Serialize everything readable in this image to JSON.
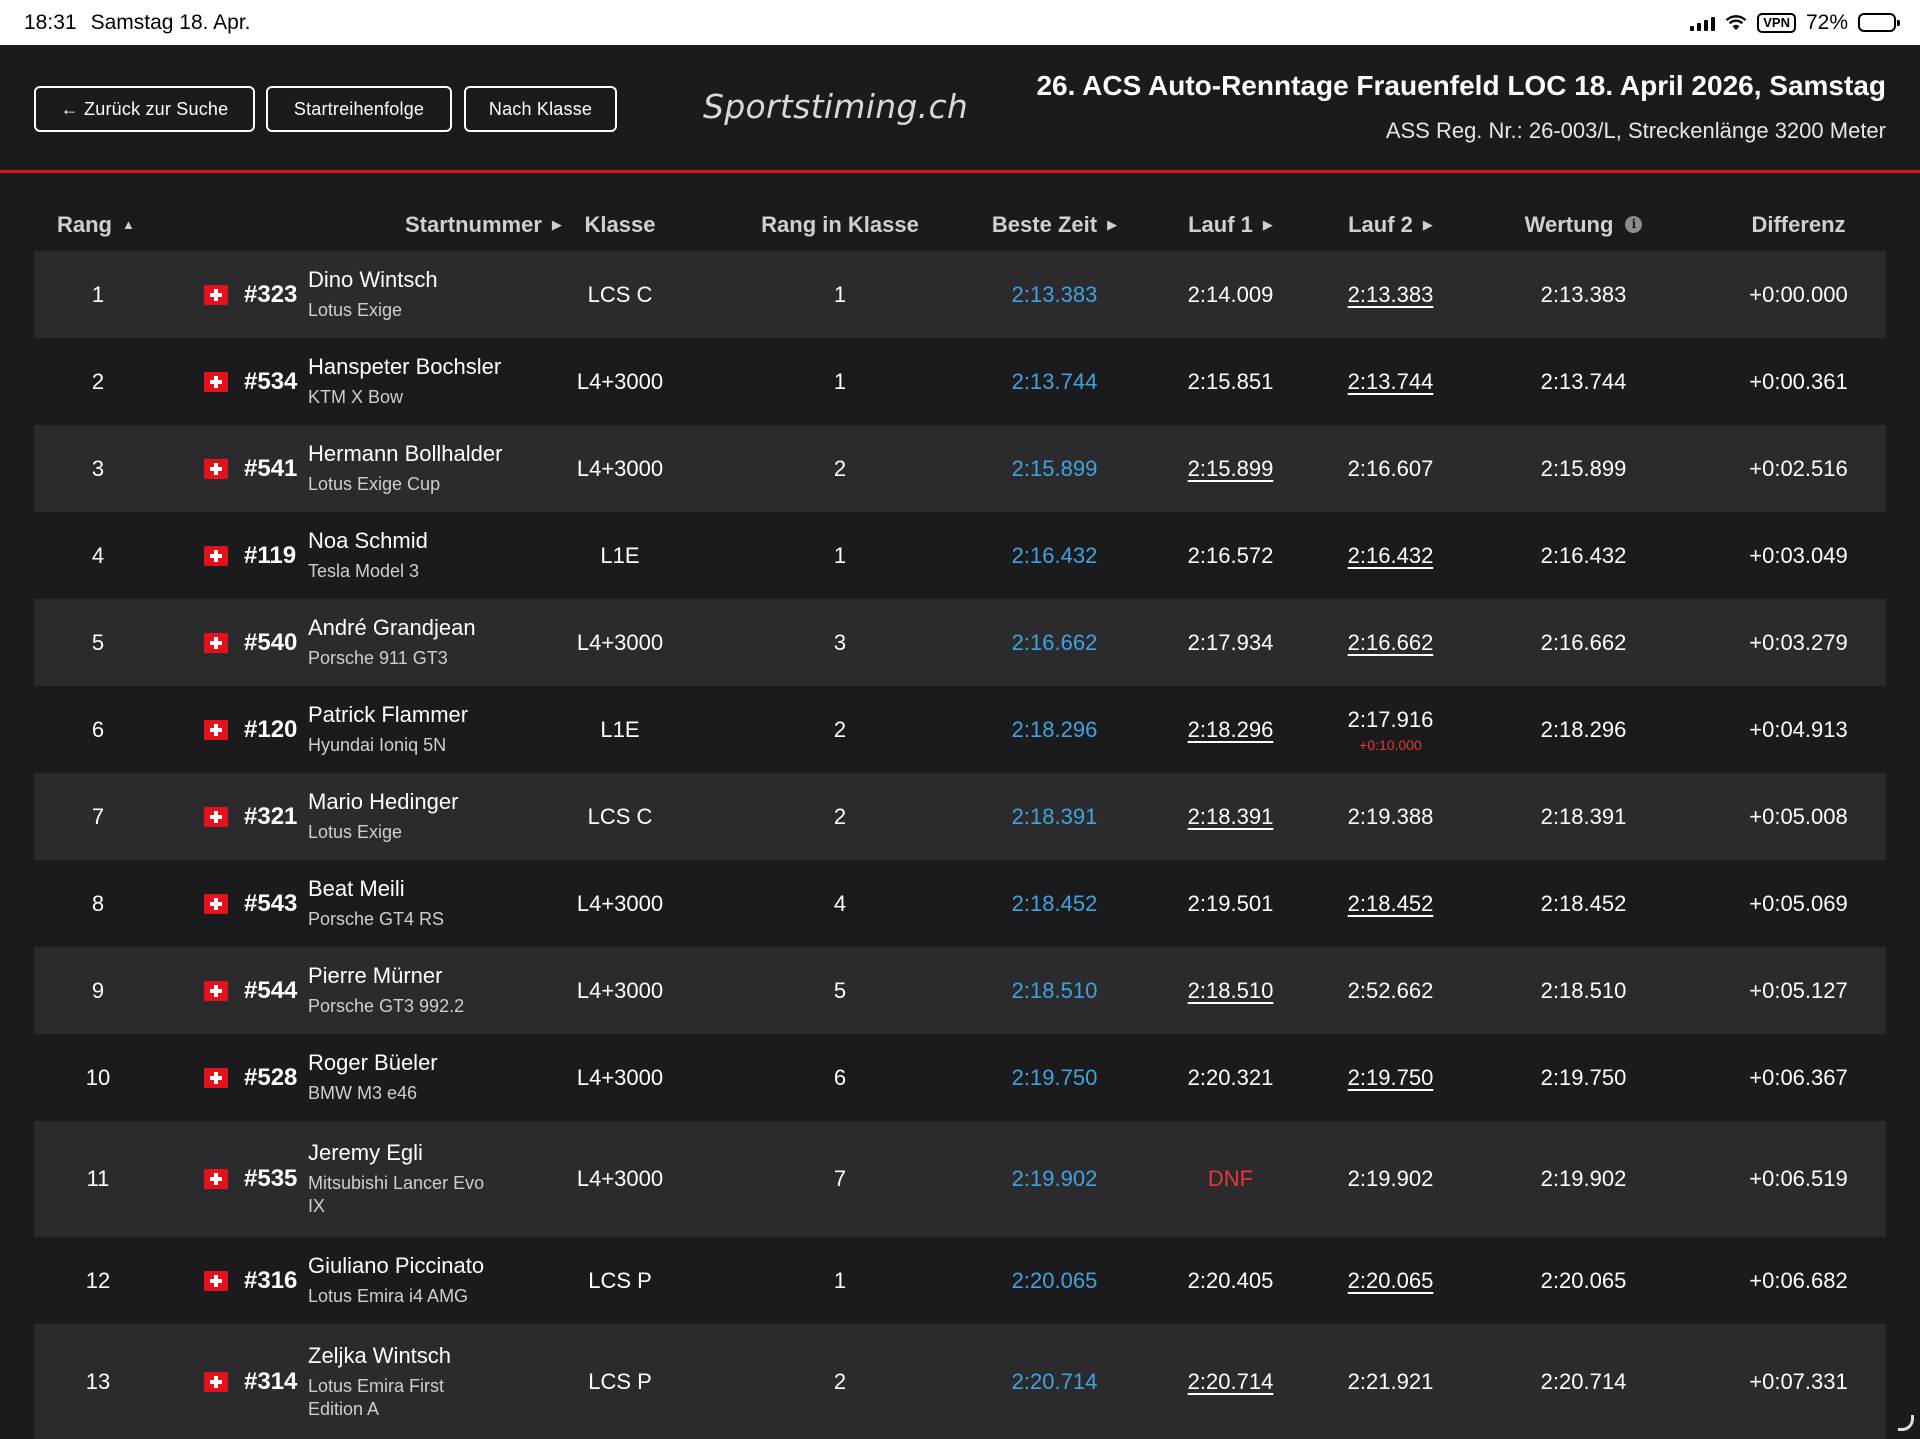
{
  "statusbar": {
    "time": "18:31",
    "date": "Samstag 18. Apr.",
    "vpn": "VPN",
    "battery": "72%",
    "battery_level": 0.72
  },
  "nav": {
    "back_label": "← Zurück zur Suche",
    "start_order_label": "Startreihenfolge",
    "by_class_label": "Nach Klasse"
  },
  "brand": {
    "logo_text": "Sportstiming.ch"
  },
  "event": {
    "title": "26. ACS Auto-Renntage Frauenfeld LOC 18. April 2026, Samstag",
    "subtitle": "ASS Reg. Nr.: 26-003/L, Streckenlänge 3200 Meter"
  },
  "table": {
    "headers": {
      "rang": "Rang",
      "startnummer": "Startnummer",
      "klasse": "Klasse",
      "rang_in_klasse": "Rang in Klasse",
      "beste_zeit": "Beste Zeit",
      "lauf1": "Lauf 1",
      "lauf2": "Lauf 2",
      "wertung": "Wertung",
      "differenz": "Differenz"
    },
    "rows": [
      {
        "rang": "1",
        "bib": "#323",
        "name": "Dino Wintsch",
        "car": "Lotus Exige",
        "klasse": "LCS C",
        "rik": "1",
        "best": "2:13.383",
        "lauf1": "2:14.009",
        "lauf2": "2:13.383",
        "l1_best": false,
        "l2_best": true,
        "penalty": "",
        "wertung": "2:13.383",
        "diff": "+0:00.000"
      },
      {
        "rang": "2",
        "bib": "#534",
        "name": "Hanspeter Bochsler",
        "car": "KTM X Bow",
        "klasse": "L4+3000",
        "rik": "1",
        "best": "2:13.744",
        "lauf1": "2:15.851",
        "lauf2": "2:13.744",
        "l1_best": false,
        "l2_best": true,
        "penalty": "",
        "wertung": "2:13.744",
        "diff": "+0:00.361"
      },
      {
        "rang": "3",
        "bib": "#541",
        "name": "Hermann Bollhalder",
        "car": "Lotus Exige Cup",
        "klasse": "L4+3000",
        "rik": "2",
        "best": "2:15.899",
        "lauf1": "2:15.899",
        "lauf2": "2:16.607",
        "l1_best": true,
        "l2_best": false,
        "penalty": "",
        "wertung": "2:15.899",
        "diff": "+0:02.516"
      },
      {
        "rang": "4",
        "bib": "#119",
        "name": "Noa Schmid",
        "car": "Tesla Model 3",
        "klasse": "L1E",
        "rik": "1",
        "best": "2:16.432",
        "lauf1": "2:16.572",
        "lauf2": "2:16.432",
        "l1_best": false,
        "l2_best": true,
        "penalty": "",
        "wertung": "2:16.432",
        "diff": "+0:03.049"
      },
      {
        "rang": "5",
        "bib": "#540",
        "name": "André Grandjean",
        "car": "Porsche 911 GT3",
        "klasse": "L4+3000",
        "rik": "3",
        "best": "2:16.662",
        "lauf1": "2:17.934",
        "lauf2": "2:16.662",
        "l1_best": false,
        "l2_best": true,
        "penalty": "",
        "wertung": "2:16.662",
        "diff": "+0:03.279"
      },
      {
        "rang": "6",
        "bib": "#120",
        "name": "Patrick Flammer",
        "car": "Hyundai Ioniq 5N",
        "klasse": "L1E",
        "rik": "2",
        "best": "2:18.296",
        "lauf1": "2:18.296",
        "lauf2": "2:17.916",
        "l1_best": true,
        "l2_best": false,
        "penalty": "+0:10.000",
        "wertung": "2:18.296",
        "diff": "+0:04.913"
      },
      {
        "rang": "7",
        "bib": "#321",
        "name": "Mario Hedinger",
        "car": "Lotus Exige",
        "klasse": "LCS C",
        "rik": "2",
        "best": "2:18.391",
        "lauf1": "2:18.391",
        "lauf2": "2:19.388",
        "l1_best": true,
        "l2_best": false,
        "penalty": "",
        "wertung": "2:18.391",
        "diff": "+0:05.008"
      },
      {
        "rang": "8",
        "bib": "#543",
        "name": "Beat Meili",
        "car": "Porsche GT4 RS",
        "klasse": "L4+3000",
        "rik": "4",
        "best": "2:18.452",
        "lauf1": "2:19.501",
        "lauf2": "2:18.452",
        "l1_best": false,
        "l2_best": true,
        "penalty": "",
        "wertung": "2:18.452",
        "diff": "+0:05.069"
      },
      {
        "rang": "9",
        "bib": "#544",
        "name": "Pierre Mürner",
        "car": "Porsche GT3 992.2",
        "klasse": "L4+3000",
        "rik": "5",
        "best": "2:18.510",
        "lauf1": "2:18.510",
        "lauf2": "2:52.662",
        "l1_best": true,
        "l2_best": false,
        "penalty": "",
        "wertung": "2:18.510",
        "diff": "+0:05.127"
      },
      {
        "rang": "10",
        "bib": "#528",
        "name": "Roger Büeler",
        "car": "BMW M3 e46",
        "klasse": "L4+3000",
        "rik": "6",
        "best": "2:19.750",
        "lauf1": "2:20.321",
        "lauf2": "2:19.750",
        "l1_best": false,
        "l2_best": true,
        "penalty": "",
        "wertung": "2:19.750",
        "diff": "+0:06.367"
      },
      {
        "rang": "11",
        "bib": "#535",
        "name": "Jeremy Egli",
        "car": "Mitsubishi Lancer Evo IX",
        "klasse": "L4+3000",
        "rik": "7",
        "best": "2:19.902",
        "lauf1": "DNF",
        "lauf2": "2:19.902",
        "l1_best": false,
        "l2_best": false,
        "penalty": "",
        "wertung": "2:19.902",
        "diff": "+0:06.519"
      },
      {
        "rang": "12",
        "bib": "#316",
        "name": "Giuliano Piccinato",
        "car": "Lotus Emira i4 AMG",
        "klasse": "LCS P",
        "rik": "1",
        "best": "2:20.065",
        "lauf1": "2:20.405",
        "lauf2": "2:20.065",
        "l1_best": false,
        "l2_best": true,
        "penalty": "",
        "wertung": "2:20.065",
        "diff": "+0:06.682"
      },
      {
        "rang": "13",
        "bib": "#314",
        "name": "Zeljka Wintsch",
        "car": "Lotus Emira First Edition A",
        "klasse": "LCS P",
        "rik": "2",
        "best": "2:20.714",
        "lauf1": "2:20.714",
        "lauf2": "2:21.921",
        "l1_best": true,
        "l2_best": false,
        "penalty": "",
        "wertung": "2:20.714",
        "diff": "+0:07.331"
      }
    ]
  }
}
